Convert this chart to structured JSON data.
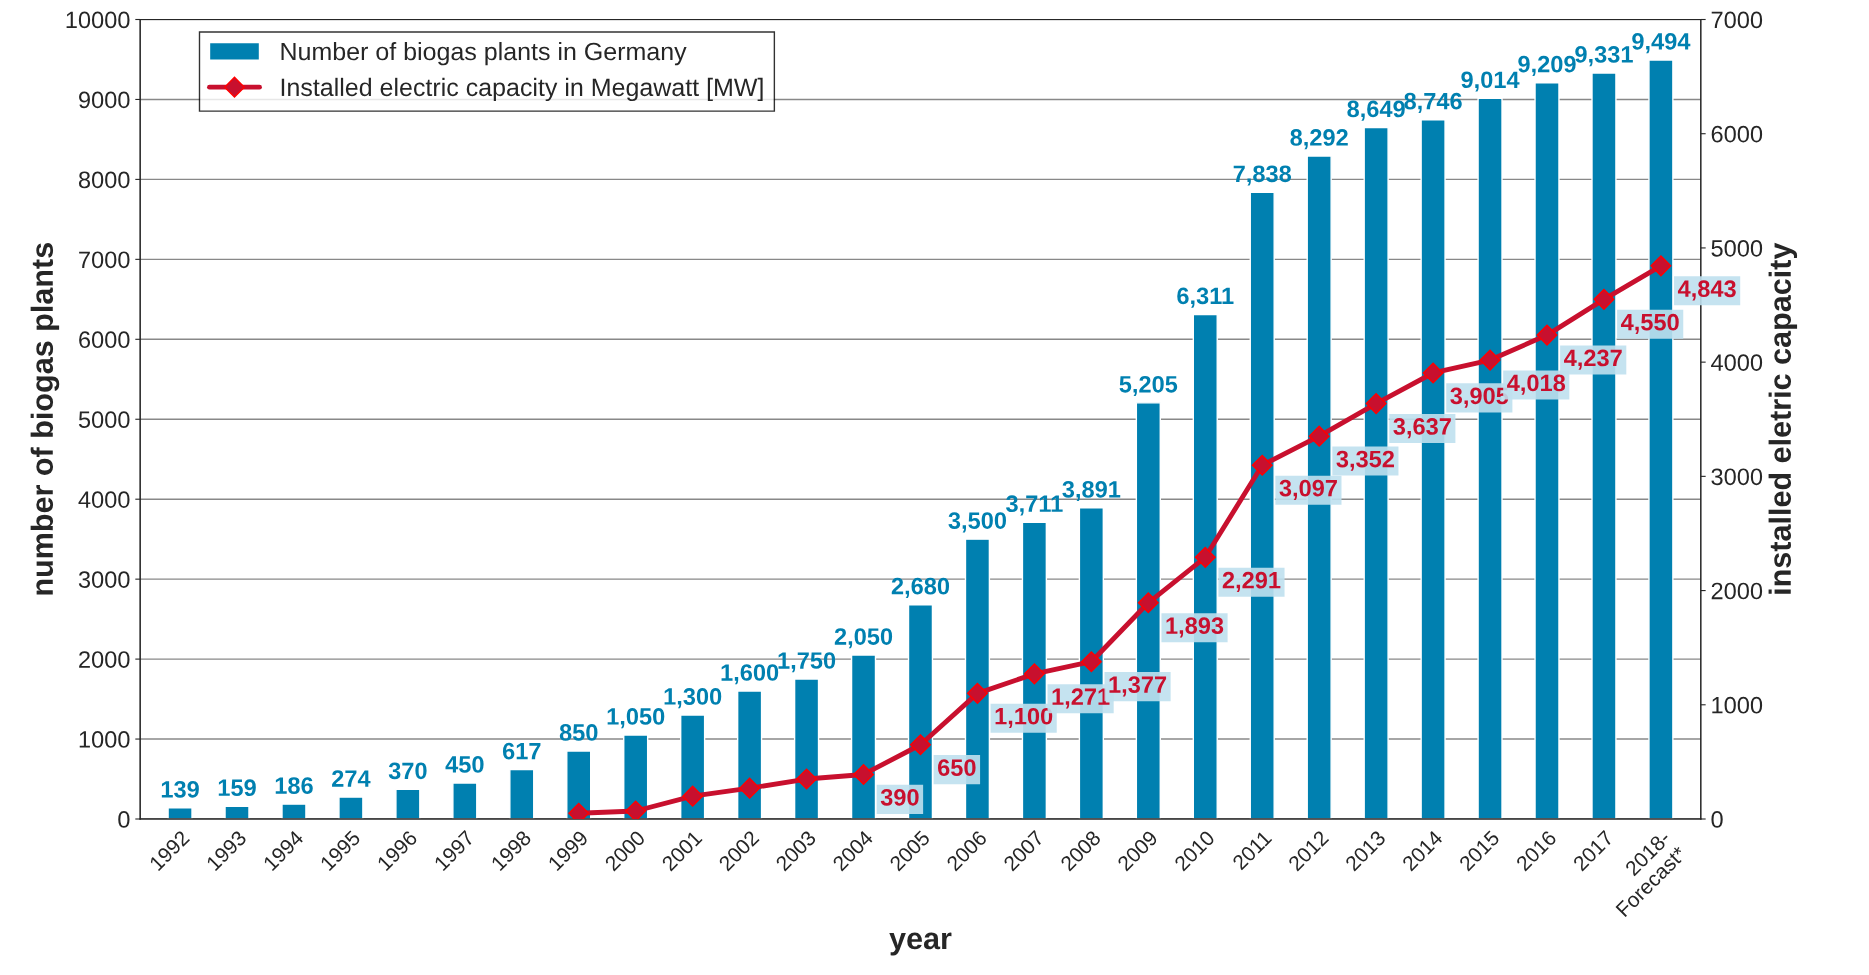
{
  "chart_data": {
    "type": "bar",
    "xlabel": "year",
    "ylabel": "number of biogas plants",
    "y2label": "installed eletric capacity",
    "categories": [
      "1992",
      "1993",
      "1994",
      "1995",
      "1996",
      "1997",
      "1998",
      "1999",
      "2000",
      "2001",
      "2002",
      "2003",
      "2004",
      "2005",
      "2006",
      "2007",
      "2008",
      "2009",
      "2010",
      "2011",
      "2012",
      "2013",
      "2014",
      "2015",
      "2016",
      "2017",
      "2018-\nForecast*"
    ],
    "series": [
      {
        "name": "Number of biogas plants in Germany",
        "color": "#0080b0",
        "values": [
          139,
          159,
          186,
          274,
          370,
          450,
          617,
          850,
          1050,
          1300,
          1600,
          1750,
          2050,
          2680,
          3500,
          3711,
          3891,
          5205,
          6311,
          7838,
          8292,
          8649,
          8746,
          9014,
          9209,
          9331,
          9494
        ],
        "value_labels": [
          "139",
          "159",
          "186",
          "274",
          "370",
          "450",
          "617",
          "850",
          "1,050",
          "1,300",
          "1,600",
          "1,750",
          "2,050",
          "2,680",
          "3,500",
          "3,711",
          "3,891",
          "5,205",
          "6,311",
          "7,838",
          "8,292",
          "8,649",
          "8,746",
          "9,014",
          "9,209",
          "9,331",
          "9,494"
        ]
      },
      {
        "name": "Installed electric capacity in Megawatt [MW]",
        "type": "line",
        "axis": "y2",
        "color": "#c8102e",
        "marker": "diamond",
        "values": [
          null,
          null,
          null,
          null,
          null,
          null,
          null,
          50,
          70,
          200,
          270,
          350,
          390,
          650,
          1100,
          1271,
          1377,
          1893,
          2291,
          3097,
          3352,
          3637,
          3905,
          4018,
          4237,
          4550,
          4843
        ],
        "value_labels": [
          null,
          null,
          null,
          null,
          null,
          null,
          null,
          null,
          null,
          null,
          null,
          null,
          "390",
          "650",
          "1,100",
          "1,271",
          "1,377",
          "1,893",
          "2,291",
          "3,097",
          "3,352",
          "3,637",
          "3,905",
          "4,018",
          "4,237",
          "4,550",
          "4,843"
        ]
      }
    ],
    "ylim": [
      0,
      10000
    ],
    "yticks": [
      0,
      1000,
      2000,
      3000,
      4000,
      5000,
      6000,
      7000,
      8000,
      9000,
      10000
    ],
    "y2lim": [
      0,
      7000
    ],
    "y2ticks": [
      0,
      1000,
      2000,
      3000,
      4000,
      5000,
      6000,
      7000
    ],
    "grid": "y",
    "legend": "top left"
  }
}
